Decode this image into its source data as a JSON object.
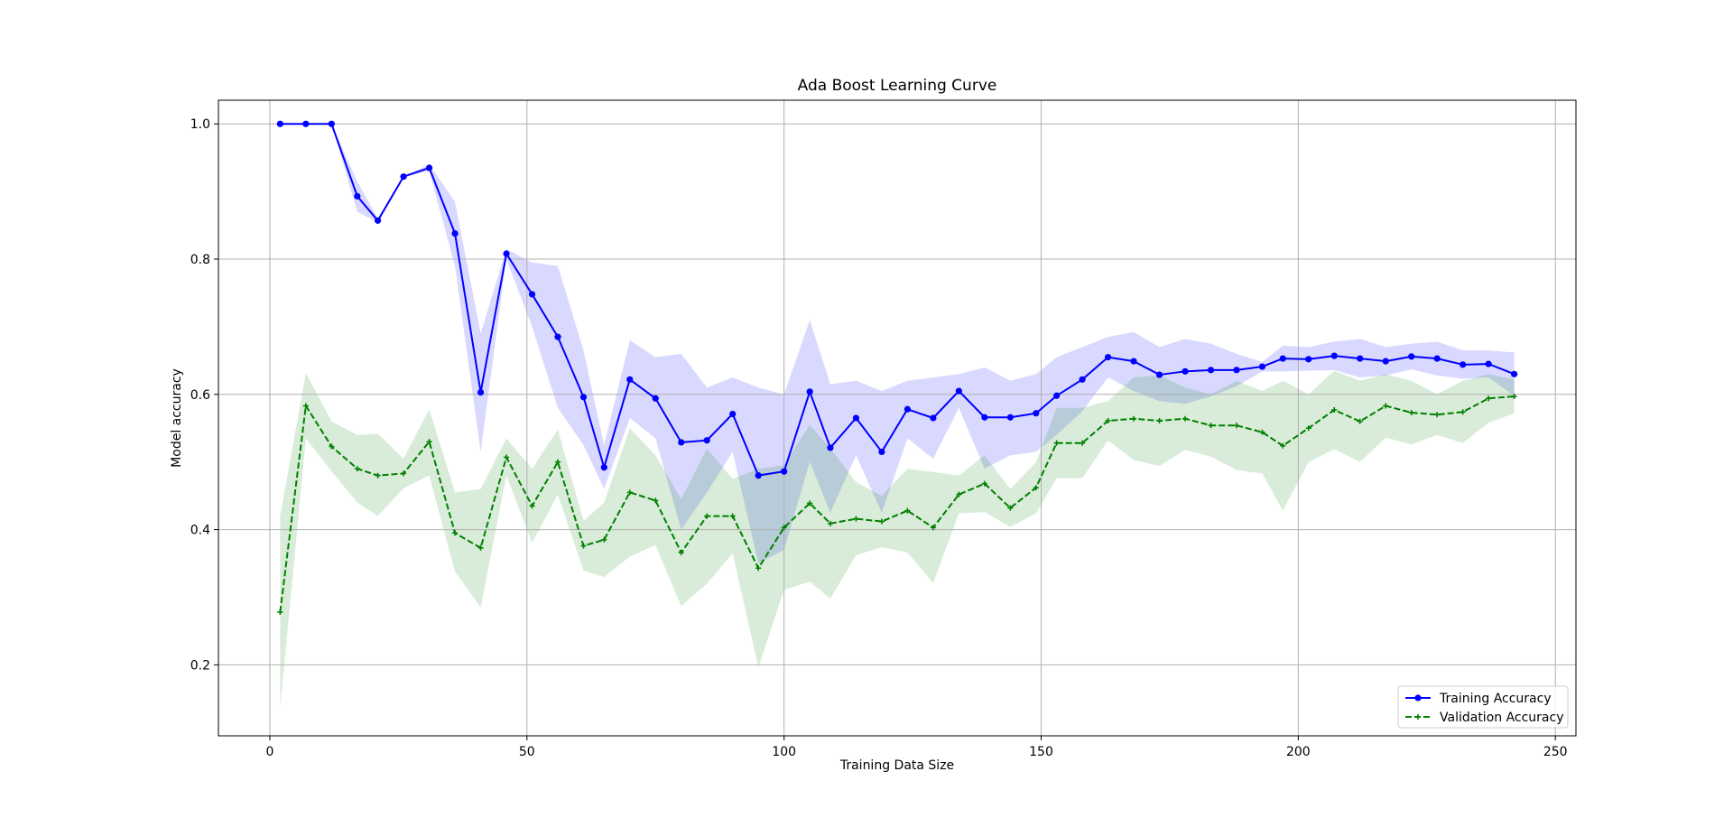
{
  "chart_data": {
    "type": "line",
    "title": "Ada Boost Learning Curve",
    "xlabel": "Training Data Size",
    "ylabel": "Model accuracy",
    "xlim": [
      -10,
      254
    ],
    "ylim": [
      0.095,
      1.035
    ],
    "xticks": [
      0,
      50,
      100,
      150,
      200,
      250
    ],
    "yticks": [
      0.2,
      0.4,
      0.6,
      0.8,
      1.0
    ],
    "xtick_labels": [
      "0",
      "50",
      "100",
      "150",
      "200",
      "250"
    ],
    "ytick_labels": [
      "0.2",
      "0.4",
      "0.6",
      "0.8",
      "1.0"
    ],
    "grid": true,
    "legend_position": "bottom-right",
    "x": [
      2,
      7,
      12,
      17,
      21,
      26,
      31,
      36,
      41,
      46,
      51,
      56,
      61,
      65,
      70,
      75,
      80,
      85,
      90,
      95,
      100,
      105,
      109,
      114,
      119,
      124,
      129,
      134,
      139,
      144,
      149,
      153,
      158,
      163,
      168,
      173,
      178,
      183,
      188,
      193,
      197,
      202,
      207,
      212,
      217,
      222,
      227,
      232,
      237,
      242
    ],
    "series": [
      {
        "name": "Training Accuracy",
        "color": "#0000ff",
        "marker": "circle",
        "linestyle": "solid",
        "values": [
          1.0,
          1.0,
          1.0,
          0.893,
          0.857,
          0.922,
          0.935,
          0.838,
          0.603,
          0.808,
          0.748,
          0.685,
          0.596,
          0.492,
          0.622,
          0.594,
          0.529,
          0.532,
          0.571,
          0.48,
          0.486,
          0.604,
          0.521,
          0.565,
          0.515,
          0.578,
          0.565,
          0.605,
          0.566,
          0.566,
          0.572,
          0.598,
          0.622,
          0.655,
          0.649,
          0.629,
          0.634,
          0.636,
          0.636,
          0.641,
          0.653,
          0.652,
          0.657,
          0.653,
          0.649,
          0.656,
          0.653,
          0.644,
          0.645,
          0.63
        ],
        "band_upper": [
          1.0,
          1.0,
          1.0,
          0.915,
          0.86,
          0.922,
          0.94,
          0.885,
          0.69,
          0.815,
          0.795,
          0.79,
          0.665,
          0.525,
          0.68,
          0.655,
          0.66,
          0.61,
          0.625,
          0.61,
          0.6,
          0.71,
          0.615,
          0.62,
          0.605,
          0.62,
          0.625,
          0.63,
          0.64,
          0.62,
          0.63,
          0.655,
          0.67,
          0.685,
          0.692,
          0.67,
          0.682,
          0.675,
          0.66,
          0.648,
          0.672,
          0.67,
          0.678,
          0.682,
          0.67,
          0.675,
          0.678,
          0.665,
          0.665,
          0.662
        ],
        "band_lower": [
          1.0,
          1.0,
          1.0,
          0.87,
          0.854,
          0.922,
          0.93,
          0.79,
          0.515,
          0.8,
          0.7,
          0.58,
          0.525,
          0.46,
          0.565,
          0.535,
          0.4,
          0.455,
          0.515,
          0.35,
          0.37,
          0.5,
          0.425,
          0.51,
          0.425,
          0.535,
          0.505,
          0.58,
          0.49,
          0.51,
          0.515,
          0.54,
          0.575,
          0.625,
          0.605,
          0.59,
          0.586,
          0.597,
          0.612,
          0.634,
          0.634,
          0.635,
          0.636,
          0.625,
          0.628,
          0.637,
          0.628,
          0.623,
          0.625,
          0.598
        ]
      },
      {
        "name": "Validation Accuracy",
        "color": "#008000",
        "marker": "plus",
        "linestyle": "dashed",
        "values": [
          0.278,
          0.583,
          0.523,
          0.49,
          0.48,
          0.483,
          0.53,
          0.395,
          0.373,
          0.507,
          0.435,
          0.5,
          0.376,
          0.385,
          0.455,
          0.443,
          0.366,
          0.42,
          0.42,
          0.343,
          0.403,
          0.439,
          0.409,
          0.416,
          0.412,
          0.428,
          0.403,
          0.452,
          0.468,
          0.432,
          0.462,
          0.528,
          0.528,
          0.561,
          0.564,
          0.561,
          0.564,
          0.554,
          0.554,
          0.544,
          0.524,
          0.55,
          0.577,
          0.56,
          0.583,
          0.573,
          0.57,
          0.574,
          0.594,
          0.597
        ],
        "band_upper": [
          0.42,
          0.632,
          0.56,
          0.54,
          0.542,
          0.505,
          0.578,
          0.455,
          0.46,
          0.535,
          0.49,
          0.548,
          0.413,
          0.44,
          0.55,
          0.51,
          0.445,
          0.52,
          0.475,
          0.49,
          0.495,
          0.555,
          0.52,
          0.47,
          0.45,
          0.49,
          0.485,
          0.48,
          0.51,
          0.46,
          0.5,
          0.58,
          0.58,
          0.59,
          0.625,
          0.628,
          0.61,
          0.6,
          0.62,
          0.605,
          0.62,
          0.6,
          0.635,
          0.62,
          0.63,
          0.62,
          0.6,
          0.62,
          0.63,
          0.622
        ],
        "band_lower": [
          0.136,
          0.535,
          0.486,
          0.44,
          0.42,
          0.461,
          0.48,
          0.338,
          0.285,
          0.48,
          0.38,
          0.452,
          0.339,
          0.33,
          0.36,
          0.377,
          0.287,
          0.32,
          0.365,
          0.196,
          0.311,
          0.323,
          0.298,
          0.362,
          0.374,
          0.366,
          0.321,
          0.424,
          0.426,
          0.404,
          0.424,
          0.476,
          0.476,
          0.532,
          0.503,
          0.494,
          0.518,
          0.508,
          0.488,
          0.483,
          0.428,
          0.5,
          0.519,
          0.5,
          0.536,
          0.526,
          0.54,
          0.528,
          0.558,
          0.572
        ]
      }
    ]
  }
}
